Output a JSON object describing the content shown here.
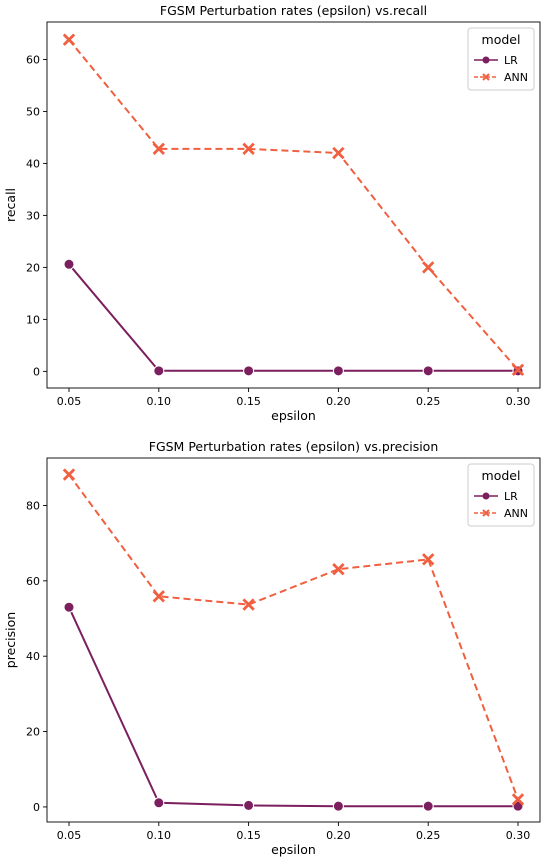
{
  "chart_data": [
    {
      "type": "line",
      "title": "FGSM Perturbation rates (epsilon) vs.recall",
      "xlabel": "epsilon",
      "ylabel": "recall",
      "x": [
        0.05,
        0.1,
        0.15,
        0.2,
        0.25,
        0.3
      ],
      "xticklabels": [
        "0.05",
        "0.10",
        "0.15",
        "0.20",
        "0.25",
        "0.30"
      ],
      "ylim": [
        -3.2,
        67.2
      ],
      "yticks": [
        0,
        10,
        20,
        30,
        40,
        50,
        60
      ],
      "legend": {
        "title": "model",
        "position": "top-right"
      },
      "series": [
        {
          "name": "LR",
          "color": "#7b1f5e",
          "linestyle": "solid",
          "marker": "circle",
          "values": [
            20.6,
            0.1,
            0.1,
            0.1,
            0.1,
            0.1
          ]
        },
        {
          "name": "ANN",
          "color": "#f06040",
          "linestyle": "dashed",
          "marker": "x",
          "values": [
            63.8,
            42.8,
            42.8,
            42.0,
            20.0,
            0.3
          ]
        }
      ]
    },
    {
      "type": "line",
      "title": "FGSM Perturbation rates (epsilon) vs.precision",
      "xlabel": "epsilon",
      "ylabel": "precision",
      "x": [
        0.05,
        0.1,
        0.15,
        0.2,
        0.25,
        0.3
      ],
      "xticklabels": [
        "0.05",
        "0.10",
        "0.15",
        "0.20",
        "0.25",
        "0.30"
      ],
      "ylim": [
        -4.0,
        92.6
      ],
      "yticks": [
        0,
        20,
        40,
        60,
        80
      ],
      "legend": {
        "title": "model",
        "position": "top-right"
      },
      "series": [
        {
          "name": "LR",
          "color": "#7b1f5e",
          "linestyle": "solid",
          "marker": "circle",
          "values": [
            53.0,
            1.1,
            0.4,
            0.2,
            0.2,
            0.2
          ]
        },
        {
          "name": "ANN",
          "color": "#f06040",
          "linestyle": "dashed",
          "marker": "x",
          "values": [
            88.2,
            55.9,
            53.7,
            63.1,
            65.7,
            2.0
          ]
        }
      ]
    }
  ]
}
